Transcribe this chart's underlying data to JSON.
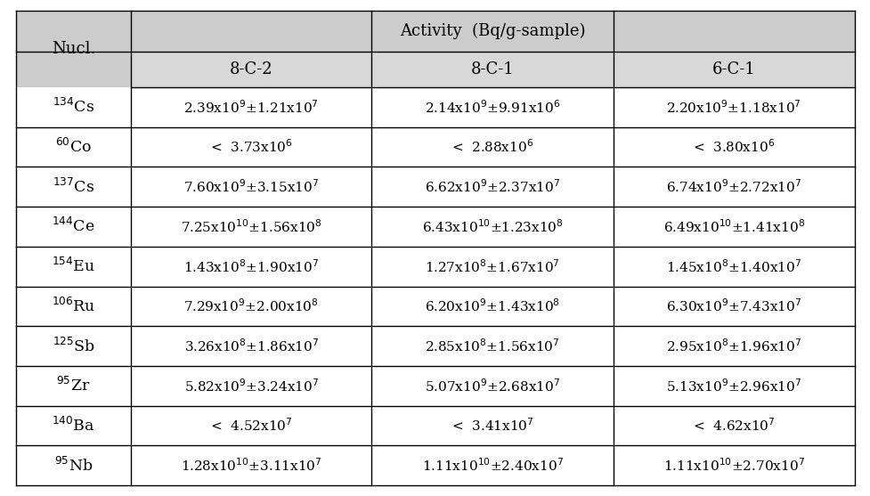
{
  "title": "Activity  (Bq/g-sample)",
  "col_headers": [
    "Nucl.",
    "8-C-2",
    "8-C-1",
    "6-C-1"
  ],
  "nuclides_display": [
    [
      "134",
      "Cs"
    ],
    [
      "60",
      "Co"
    ],
    [
      "137",
      "Cs"
    ],
    [
      "144",
      "Ce"
    ],
    [
      "154",
      "Eu"
    ],
    [
      "106",
      "Ru"
    ],
    [
      "125",
      "Sb"
    ],
    [
      "95",
      "Zr"
    ],
    [
      "140",
      "Ba"
    ],
    [
      "95",
      "Nb"
    ]
  ],
  "data": [
    [
      "2.39x10$^{9}$±1.21x10$^{7}$",
      "2.14x10$^{9}$±9.91x10$^{6}$",
      "2.20x10$^{9}$±1.18x10$^{7}$"
    ],
    [
      "<  3.73x10$^{6}$",
      "<  2.88x10$^{6}$",
      "<  3.80x10$^{6}$"
    ],
    [
      "7.60x10$^{9}$±3.15x10$^{7}$",
      "6.62x10$^{9}$±2.37x10$^{7}$",
      "6.74x10$^{9}$±2.72x10$^{7}$"
    ],
    [
      "7.25x10$^{10}$±1.56x10$^{8}$",
      "6.43x10$^{10}$±1.23x10$^{8}$",
      "6.49x10$^{10}$±1.41x10$^{8}$"
    ],
    [
      "1.43x10$^{8}$±1.90x10$^{7}$",
      "1.27x10$^{8}$±1.67x10$^{7}$",
      "1.45x10$^{8}$±1.40x10$^{7}$"
    ],
    [
      "7.29x10$^{9}$±2.00x10$^{8}$",
      "6.20x10$^{9}$±1.43x10$^{8}$",
      "6.30x10$^{9}$±7.43x10$^{7}$"
    ],
    [
      "3.26x10$^{8}$±1.86x10$^{7}$",
      "2.85x10$^{8}$±1.56x10$^{7}$",
      "2.95x10$^{8}$±1.96x10$^{7}$"
    ],
    [
      "5.82x10$^{9}$±3.24x10$^{7}$",
      "5.07x10$^{9}$±2.68x10$^{7}$",
      "5.13x10$^{9}$±2.96x10$^{7}$"
    ],
    [
      "<  4.52x10$^{7}$",
      "<  3.41x10$^{7}$",
      "<  4.62x10$^{7}$"
    ],
    [
      "1.28x10$^{10}$±3.11x10$^{7}$",
      "1.11x10$^{10}$±2.40x10$^{7}$",
      "1.11x10$^{10}$±2.70x10$^{7}$"
    ]
  ],
  "header_bg": "#cccccc",
  "subheader_bg": "#d8d8d8",
  "row_bg": "#ffffff",
  "border_color": "#000000",
  "text_color": "#000000",
  "fig_bg": "#ffffff",
  "data_fontsize": 11.0,
  "header_fontsize": 13.0,
  "nuclide_fontsize": 12.5
}
